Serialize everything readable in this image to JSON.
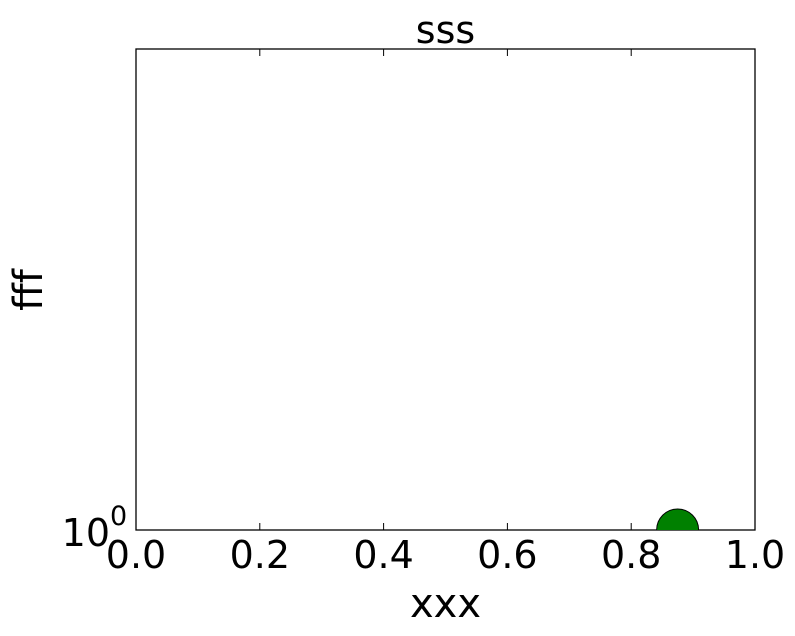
{
  "chart_data": {
    "type": "scatter",
    "title": "sss",
    "xlabel": "xxx",
    "ylabel": "fff",
    "xlim": [
      0.0,
      1.0
    ],
    "yscale": "log",
    "x_ticks": [
      "0.0",
      "0.2",
      "0.4",
      "0.6",
      "0.8",
      "1.0"
    ],
    "y_tick_base": "10",
    "y_tick_exponent": "0",
    "grid": false,
    "series": [
      {
        "color": "#008000",
        "points": [
          {
            "x": 0.875,
            "y": 1
          }
        ]
      }
    ]
  }
}
